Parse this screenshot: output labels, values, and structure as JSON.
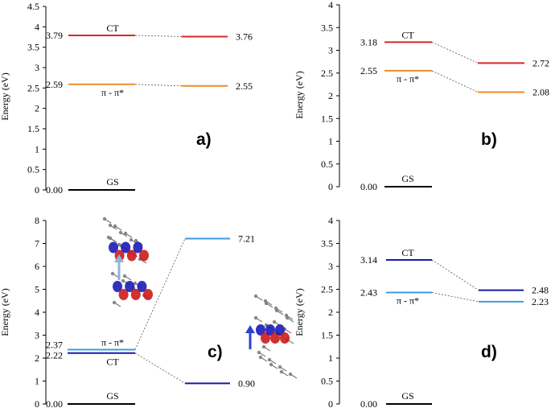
{
  "colors": {
    "red": "#d62728",
    "orange": "#ef8c2a",
    "black": "#000000",
    "light_blue": "#3f9ae0",
    "dark_blue": "#1a1aa8",
    "connector": "#555555",
    "arrow_light": "#8fb4d8",
    "arrow_dark": "#2b3fd8"
  },
  "chart_data": [
    {
      "type": "energy-level-diagram",
      "panel": "a)",
      "ylabel": "Energy (eV)",
      "ylim": [
        0,
        4.5
      ],
      "yticks": [
        "0",
        "0.5",
        "1",
        "1.5",
        "2",
        "2.5",
        "3",
        "3.5",
        "4",
        "4.5"
      ],
      "levels": [
        {
          "id": "CT",
          "value": 3.79,
          "value_label": "3.79",
          "name": "CT",
          "color": "red",
          "column": "left"
        },
        {
          "id": "PP",
          "value": 2.59,
          "value_label": "2.59",
          "name": "π - π*",
          "color": "orange",
          "column": "left"
        },
        {
          "id": "GS",
          "value": 0.0,
          "value_label": "0.00",
          "name": "GS",
          "color": "black",
          "column": "left"
        },
        {
          "id": "CT2",
          "value": 3.76,
          "value_label": "3.76",
          "color": "red",
          "column": "right"
        },
        {
          "id": "PP2",
          "value": 2.55,
          "value_label": "2.55",
          "color": "orange",
          "column": "right"
        }
      ],
      "connections": [
        [
          "CT",
          "CT2"
        ],
        [
          "PP",
          "PP2"
        ]
      ]
    },
    {
      "type": "energy-level-diagram",
      "panel": "b)",
      "ylabel": "Energy (eV)",
      "ylim": [
        0,
        4
      ],
      "yticks": [
        "0",
        "0.5",
        "1",
        "1.5",
        "2",
        "2.5",
        "3",
        "3.5",
        "4"
      ],
      "levels": [
        {
          "id": "CT",
          "value": 3.18,
          "value_label": "3.18",
          "name": "CT",
          "color": "red",
          "column": "left"
        },
        {
          "id": "PP",
          "value": 2.55,
          "value_label": "2.55",
          "name": "π - π*",
          "color": "orange",
          "column": "left"
        },
        {
          "id": "GS",
          "value": 0.0,
          "value_label": "0.00",
          "name": "GS",
          "color": "black",
          "column": "left"
        },
        {
          "id": "CT2",
          "value": 2.72,
          "value_label": "2.72",
          "color": "red",
          "column": "right"
        },
        {
          "id": "PP2",
          "value": 2.08,
          "value_label": "2.08",
          "color": "orange",
          "column": "right"
        }
      ],
      "connections": [
        [
          "CT",
          "CT2"
        ],
        [
          "PP",
          "PP2"
        ]
      ]
    },
    {
      "type": "energy-level-diagram",
      "panel": "c)",
      "ylabel": "Energy (eV)",
      "ylim": [
        0,
        8
      ],
      "yticks": [
        "0",
        "1",
        "2",
        "3",
        "4",
        "5",
        "6",
        "7",
        "8"
      ],
      "levels": [
        {
          "id": "PP",
          "value": 2.37,
          "value_label": "2.37",
          "name": "π - π*",
          "color": "light_blue",
          "column": "left"
        },
        {
          "id": "CT",
          "value": 2.22,
          "value_label": "2.22",
          "name": "CT",
          "color": "dark_blue",
          "column": "left"
        },
        {
          "id": "GS",
          "value": 0.0,
          "value_label": "0.00",
          "name": "GS",
          "color": "black",
          "column": "left"
        },
        {
          "id": "PP2",
          "value": 7.21,
          "value_label": "7.21",
          "color": "light_blue",
          "column": "right"
        },
        {
          "id": "CT2",
          "value": 0.9,
          "value_label": "0.90",
          "color": "dark_blue",
          "column": "right"
        }
      ],
      "connections": [
        [
          "PP",
          "PP2"
        ],
        [
          "CT",
          "CT2"
        ]
      ]
    },
    {
      "type": "energy-level-diagram",
      "panel": "d)",
      "ylabel": "Energy (eV)",
      "ylim": [
        0,
        4
      ],
      "yticks": [
        "0",
        "0.5",
        "1",
        "1.5",
        "2",
        "2.5",
        "3",
        "3.5",
        "4"
      ],
      "levels": [
        {
          "id": "CT",
          "value": 3.14,
          "value_label": "3.14",
          "name": "CT",
          "color": "dark_blue",
          "column": "left"
        },
        {
          "id": "PP",
          "value": 2.43,
          "value_label": "2.43",
          "name": "π - π*",
          "color": "light_blue",
          "column": "left"
        },
        {
          "id": "GS",
          "value": 0.0,
          "value_label": "0.00",
          "name": "GS",
          "color": "black",
          "column": "left"
        },
        {
          "id": "CT2",
          "value": 2.48,
          "value_label": "2.48",
          "color": "dark_blue",
          "column": "right"
        },
        {
          "id": "PP2",
          "value": 2.23,
          "value_label": "2.23",
          "color": "light_blue",
          "column": "right"
        }
      ],
      "connections": [
        [
          "CT",
          "CT2"
        ],
        [
          "PP",
          "PP2"
        ]
      ]
    }
  ]
}
